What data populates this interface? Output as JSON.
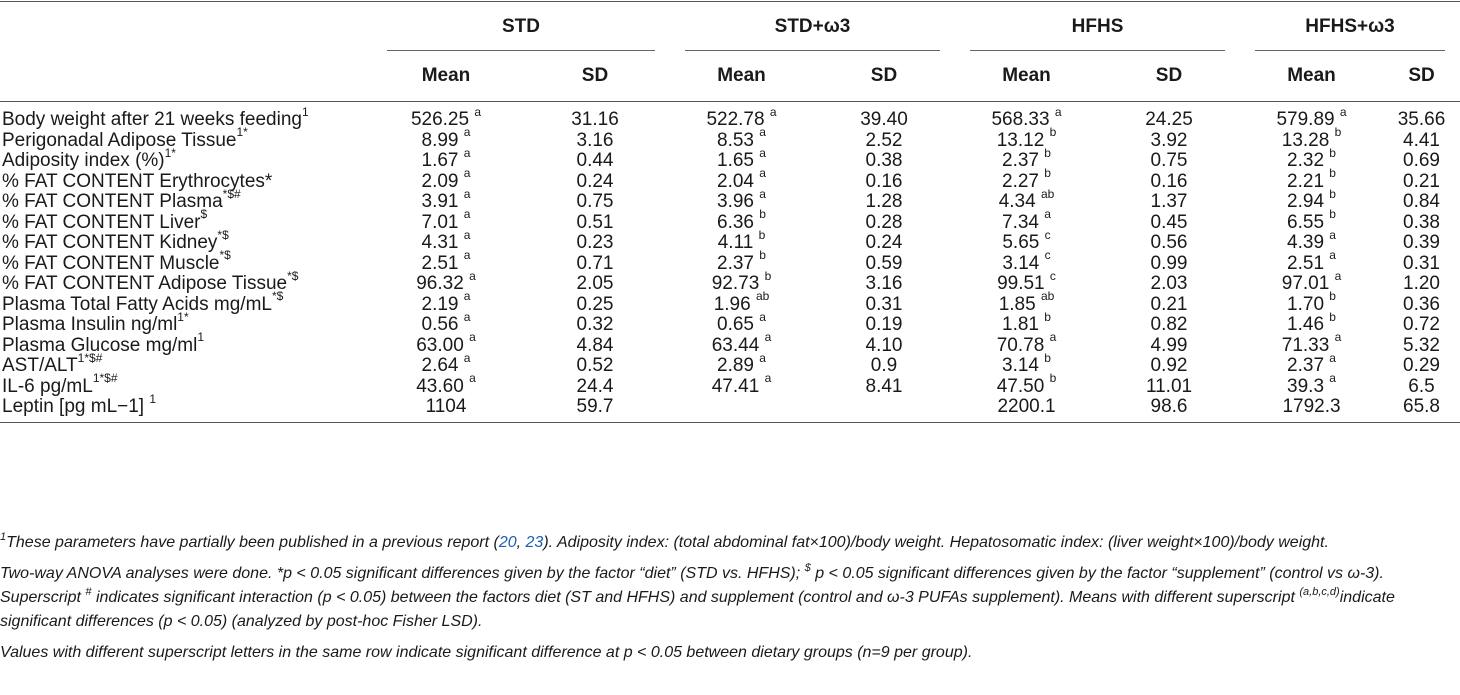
{
  "header": {
    "groups": [
      "STD",
      "STD+ω3",
      "HFHS",
      "HFHS+ω3"
    ],
    "mean_label": "Mean",
    "sd_label": "SD"
  },
  "rows": [
    {
      "label": "Body weight after 21 weeks feeding",
      "label_sup": "1",
      "cells": [
        {
          "v": "526.25",
          "s": "a"
        },
        {
          "v": "31.16",
          "s": ""
        },
        {
          "v": "522.78",
          "s": "a"
        },
        {
          "v": "39.40",
          "s": ""
        },
        {
          "v": "568.33",
          "s": "a"
        },
        {
          "v": "24.25",
          "s": ""
        },
        {
          "v": "579.89",
          "s": "a"
        },
        {
          "v": "35.66",
          "s": ""
        }
      ]
    },
    {
      "label": "Perigonadal Adipose Tissue",
      "label_sup": "1*",
      "cells": [
        {
          "v": "8.99",
          "s": "a"
        },
        {
          "v": "3.16",
          "s": ""
        },
        {
          "v": "8.53",
          "s": "a"
        },
        {
          "v": "2.52",
          "s": ""
        },
        {
          "v": "13.12",
          "s": "b"
        },
        {
          "v": "3.92",
          "s": ""
        },
        {
          "v": "13.28",
          "s": "b"
        },
        {
          "v": "4.41",
          "s": ""
        }
      ]
    },
    {
      "label": "Adiposity index (%)",
      "label_sup": "1*",
      "cells": [
        {
          "v": "1.67",
          "s": "a"
        },
        {
          "v": "0.44",
          "s": ""
        },
        {
          "v": "1.65",
          "s": "a"
        },
        {
          "v": "0.38",
          "s": ""
        },
        {
          "v": "2.37",
          "s": "b"
        },
        {
          "v": "0.75",
          "s": ""
        },
        {
          "v": "2.32",
          "s": "b"
        },
        {
          "v": "0.69",
          "s": ""
        }
      ]
    },
    {
      "label": "% FAT CONTENT Erythrocytes*",
      "label_sup": "",
      "cells": [
        {
          "v": "2.09",
          "s": "a"
        },
        {
          "v": "0.24",
          "s": ""
        },
        {
          "v": "2.04",
          "s": "a"
        },
        {
          "v": "0.16",
          "s": ""
        },
        {
          "v": "2.27",
          "s": "b"
        },
        {
          "v": "0.16",
          "s": ""
        },
        {
          "v": "2.21",
          "s": "b"
        },
        {
          "v": "0.21",
          "s": ""
        }
      ]
    },
    {
      "label": "% FAT CONTENT Plasma",
      "label_sup": "*$#",
      "cells": [
        {
          "v": "3.91",
          "s": "a"
        },
        {
          "v": "0.75",
          "s": ""
        },
        {
          "v": "3.96",
          "s": "a"
        },
        {
          "v": "1.28",
          "s": ""
        },
        {
          "v": "4.34",
          "s": "ab"
        },
        {
          "v": "1.37",
          "s": ""
        },
        {
          "v": "2.94",
          "s": "b"
        },
        {
          "v": "0.84",
          "s": ""
        }
      ]
    },
    {
      "label": "% FAT CONTENT Liver",
      "label_sup": "$",
      "cells": [
        {
          "v": "7.01",
          "s": "a"
        },
        {
          "v": "0.51",
          "s": ""
        },
        {
          "v": "6.36",
          "s": "b"
        },
        {
          "v": "0.28",
          "s": ""
        },
        {
          "v": "7.34",
          "s": "a"
        },
        {
          "v": "0.45",
          "s": ""
        },
        {
          "v": "6.55",
          "s": "b"
        },
        {
          "v": "0.38",
          "s": ""
        }
      ]
    },
    {
      "label": "% FAT CONTENT Kidney",
      "label_sup": "*$",
      "cells": [
        {
          "v": "4.31",
          "s": "a"
        },
        {
          "v": "0.23",
          "s": ""
        },
        {
          "v": "4.11",
          "s": "b"
        },
        {
          "v": "0.24",
          "s": ""
        },
        {
          "v": "5.65",
          "s": "c"
        },
        {
          "v": "0.56",
          "s": ""
        },
        {
          "v": "4.39",
          "s": "a"
        },
        {
          "v": "0.39",
          "s": ""
        }
      ]
    },
    {
      "label": "% FAT CONTENT Muscle",
      "label_sup": "*$",
      "cells": [
        {
          "v": "2.51",
          "s": "a"
        },
        {
          "v": "0.71",
          "s": ""
        },
        {
          "v": "2.37",
          "s": "b"
        },
        {
          "v": "0.59",
          "s": ""
        },
        {
          "v": "3.14",
          "s": "c"
        },
        {
          "v": "0.99",
          "s": ""
        },
        {
          "v": "2.51",
          "s": "a"
        },
        {
          "v": "0.31",
          "s": ""
        }
      ]
    },
    {
      "label": "% FAT CONTENT Adipose Tissue",
      "label_sup": "*$",
      "cells": [
        {
          "v": "96.32",
          "s": "a"
        },
        {
          "v": "2.05",
          "s": ""
        },
        {
          "v": "92.73",
          "s": "b"
        },
        {
          "v": "3.16",
          "s": ""
        },
        {
          "v": "99.51",
          "s": "c"
        },
        {
          "v": "2.03",
          "s": ""
        },
        {
          "v": "97.01",
          "s": "a"
        },
        {
          "v": "1.20",
          "s": ""
        }
      ]
    },
    {
      "label": "Plasma Total Fatty Acids mg/mL",
      "label_sup": "*$",
      "cells": [
        {
          "v": "2.19",
          "s": "a"
        },
        {
          "v": "0.25",
          "s": ""
        },
        {
          "v": "1.96",
          "s": "ab"
        },
        {
          "v": "0.31",
          "s": ""
        },
        {
          "v": "1.85",
          "s": "ab"
        },
        {
          "v": "0.21",
          "s": ""
        },
        {
          "v": "1.70",
          "s": "b"
        },
        {
          "v": "0.36",
          "s": ""
        }
      ]
    },
    {
      "label": "Plasma Insulin ng/ml",
      "label_sup": "1*",
      "cells": [
        {
          "v": "0.56",
          "s": "a"
        },
        {
          "v": "0.32",
          "s": ""
        },
        {
          "v": "0.65",
          "s": "a"
        },
        {
          "v": "0.19",
          "s": ""
        },
        {
          "v": "1.81",
          "s": "b"
        },
        {
          "v": "0.82",
          "s": ""
        },
        {
          "v": "1.46",
          "s": "b"
        },
        {
          "v": "0.72",
          "s": ""
        }
      ]
    },
    {
      "label": "Plasma Glucose mg/ml",
      "label_sup": "1",
      "cells": [
        {
          "v": "63.00",
          "s": "a"
        },
        {
          "v": "4.84",
          "s": ""
        },
        {
          "v": "63.44",
          "s": "a"
        },
        {
          "v": "4.10",
          "s": ""
        },
        {
          "v": "70.78",
          "s": "a"
        },
        {
          "v": "4.99",
          "s": ""
        },
        {
          "v": "71.33",
          "s": "a"
        },
        {
          "v": "5.32",
          "s": ""
        }
      ]
    },
    {
      "label": "AST/ALT",
      "label_sup": "1*$#",
      "cells": [
        {
          "v": "2.64",
          "s": "a"
        },
        {
          "v": "0.52",
          "s": ""
        },
        {
          "v": "2.89",
          "s": "a"
        },
        {
          "v": "0.9",
          "s": ""
        },
        {
          "v": "3.14",
          "s": "b"
        },
        {
          "v": "0.92",
          "s": ""
        },
        {
          "v": "2.37",
          "s": "a"
        },
        {
          "v": "0.29",
          "s": ""
        }
      ]
    },
    {
      "label": "IL-6 pg/mL",
      "label_sup": "1*$#",
      "cells": [
        {
          "v": "43.60",
          "s": "a"
        },
        {
          "v": "24.4",
          "s": ""
        },
        {
          "v": "47.41",
          "s": "a"
        },
        {
          "v": "8.41",
          "s": ""
        },
        {
          "v": "47.50",
          "s": "b"
        },
        {
          "v": "11.01",
          "s": ""
        },
        {
          "v": "39.3",
          "s": "a"
        },
        {
          "v": "6.5",
          "s": ""
        }
      ]
    },
    {
      "label": "Leptin [pg mL−1] ",
      "label_sup": "1",
      "cells": [
        {
          "v": "1104",
          "s": ""
        },
        {
          "v": "59.7",
          "s": ""
        },
        {
          "v": "",
          "s": ""
        },
        {
          "v": "",
          "s": ""
        },
        {
          "v": "2200.1",
          "s": ""
        },
        {
          "v": "98.6",
          "s": ""
        },
        {
          "v": "1792.3",
          "s": ""
        },
        {
          "v": "65.8",
          "s": ""
        }
      ]
    }
  ],
  "footnotes": {
    "fn1": {
      "sup": "1",
      "a": "These parameters have partially been published in a previous report (",
      "ref1": "20",
      "b": ", ",
      "ref2": "23",
      "c": "). Adiposity index: (total abdominal fat×100)/body weight. Hepatosomatic index: (liver weight×100)/body weight."
    },
    "fn2": {
      "a": "Two-way ANOVA analyses were done. *p < 0.05 significant differences given by the factor “diet” (STD vs. HFHS); ",
      "sup1": "$",
      "b": " p < 0.05 significant differences given by the factor “supplement” (control vs ω-3). Superscript ",
      "sup2": "#",
      "c": " indicates significant interaction (p < 0.05) between the factors diet (ST and HFHS) and supplement (control and ω-3 PUFAs supplement). Means with different superscript ",
      "sup3": "(a,b,c,d)",
      "d": "indicate significant differences (p < 0.05) (analyzed by post-hoc Fisher LSD)."
    },
    "fn3": "Values with different superscript letters in the same row indicate significant difference at p < 0.05 between dietary groups (n=9 per group)."
  }
}
